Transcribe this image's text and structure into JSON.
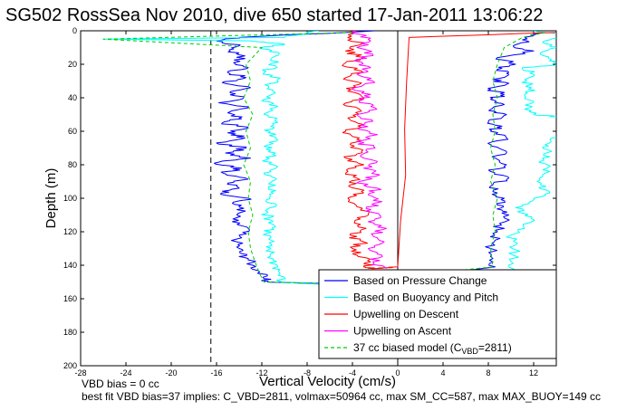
{
  "chart_data": {
    "type": "line",
    "title": "SG502 RossSea Nov 2010, dive 650 started 17-Jan-2011 13:06:22",
    "xlabel": "Vertical Velocity (cm/s)",
    "ylabel": "Depth (m)",
    "xlim": [
      -28,
      14
    ],
    "ylim": [
      0,
      200
    ],
    "y_reversed": true,
    "xticks": [
      -28,
      -24,
      -20,
      -16,
      -12,
      -8,
      -4,
      0,
      4,
      8,
      12
    ],
    "yticks": [
      0,
      20,
      40,
      60,
      80,
      100,
      120,
      140,
      160,
      180,
      200
    ],
    "grid": false,
    "legend_position": "bottom-right",
    "reference_lines": [
      {
        "x": -16.5,
        "style": "dashed",
        "color": "#000000"
      },
      {
        "x": 0,
        "style": "solid",
        "color": "#000000"
      }
    ],
    "series": [
      {
        "name": "Based on Pressure Change",
        "color": "#0000ff",
        "style": "solid",
        "points": [
          [
            -2,
            0
          ],
          [
            -14,
            4
          ],
          [
            -16,
            6
          ],
          [
            -14,
            9
          ],
          [
            -14.8,
            12
          ],
          [
            -13.5,
            15
          ],
          [
            -14.5,
            19
          ],
          [
            -13.2,
            22
          ],
          [
            -15,
            25
          ],
          [
            -13.4,
            28
          ],
          [
            -15.5,
            31
          ],
          [
            -13,
            34
          ],
          [
            -14.8,
            37
          ],
          [
            -13.6,
            40
          ],
          [
            -15.8,
            43
          ],
          [
            -13.2,
            46
          ],
          [
            -15,
            49
          ],
          [
            -14,
            52
          ],
          [
            -15.5,
            55
          ],
          [
            -13.2,
            58
          ],
          [
            -15,
            61
          ],
          [
            -13.5,
            64
          ],
          [
            -16,
            67
          ],
          [
            -13.4,
            70
          ],
          [
            -15.2,
            73
          ],
          [
            -13,
            76
          ],
          [
            -16.2,
            79
          ],
          [
            -13.8,
            82
          ],
          [
            -15.4,
            85
          ],
          [
            -13.4,
            88
          ],
          [
            -15,
            91
          ],
          [
            -14,
            94
          ],
          [
            -15.6,
            97
          ],
          [
            -13.2,
            100
          ],
          [
            -14.6,
            103
          ],
          [
            -13.6,
            106
          ],
          [
            -14.2,
            110
          ],
          [
            -14.6,
            114
          ],
          [
            -13.2,
            118
          ],
          [
            -14,
            122
          ],
          [
            -14.2,
            126
          ],
          [
            -14,
            130
          ],
          [
            -13.8,
            133
          ],
          [
            -13.2,
            136
          ],
          [
            -12.8,
            140
          ],
          [
            -12.2,
            144
          ],
          [
            -11.8,
            148
          ],
          [
            -11.5,
            150
          ],
          [
            -6,
            151
          ],
          [
            -4,
            152
          ],
          [
            8.6,
            141
          ],
          [
            8.4,
            136
          ],
          [
            8.2,
            130
          ],
          [
            8.6,
            125
          ],
          [
            8.8,
            120
          ],
          [
            9,
            115
          ],
          [
            9.8,
            110
          ],
          [
            9.2,
            107
          ],
          [
            8.8,
            104
          ],
          [
            9.4,
            100
          ],
          [
            8.4,
            96
          ],
          [
            8.4,
            92
          ],
          [
            9.8,
            88
          ],
          [
            8.2,
            84
          ],
          [
            9.6,
            80
          ],
          [
            8.6,
            76
          ],
          [
            9.6,
            72
          ],
          [
            8.2,
            68
          ],
          [
            9.6,
            64
          ],
          [
            8.2,
            60
          ],
          [
            9.2,
            57
          ],
          [
            8,
            54
          ],
          [
            9.6,
            50
          ],
          [
            8.2,
            47
          ],
          [
            9.4,
            44
          ],
          [
            8.2,
            41
          ],
          [
            9.4,
            38
          ],
          [
            8.2,
            35
          ],
          [
            9.6,
            32
          ],
          [
            8.4,
            29
          ],
          [
            9.8,
            26
          ],
          [
            8.8,
            23
          ],
          [
            10.4,
            20
          ],
          [
            8.8,
            16
          ],
          [
            12,
            12
          ],
          [
            10.2,
            9
          ],
          [
            11.4,
            6
          ],
          [
            12,
            3
          ],
          [
            13,
            1
          ]
        ]
      },
      {
        "name": "Based on Buoyancy and Pitch",
        "color": "#00ffff",
        "style": "solid",
        "points": [
          [
            -7,
            0
          ],
          [
            -10,
            4
          ],
          [
            -26,
            5
          ],
          [
            -13,
            6
          ],
          [
            -10,
            8
          ],
          [
            -12,
            10
          ],
          [
            -10.5,
            13
          ],
          [
            -11.2,
            17
          ],
          [
            -10.8,
            21
          ],
          [
            -11.8,
            25
          ],
          [
            -10.6,
            29
          ],
          [
            -11.4,
            33
          ],
          [
            -10.8,
            37
          ],
          [
            -11.8,
            41
          ],
          [
            -10.6,
            45
          ],
          [
            -11.6,
            49
          ],
          [
            -10.8,
            53
          ],
          [
            -11.2,
            57
          ],
          [
            -11.4,
            61
          ],
          [
            -10.6,
            65
          ],
          [
            -11.8,
            69
          ],
          [
            -10.8,
            73
          ],
          [
            -11.6,
            77
          ],
          [
            -10.6,
            81
          ],
          [
            -11.8,
            85
          ],
          [
            -10.8,
            89
          ],
          [
            -11.4,
            93
          ],
          [
            -11,
            97
          ],
          [
            -11.6,
            101
          ],
          [
            -10.8,
            105
          ],
          [
            -11.6,
            109
          ],
          [
            -11.2,
            113
          ],
          [
            -10.8,
            117
          ],
          [
            -11.6,
            121
          ],
          [
            -11.2,
            125
          ],
          [
            -11.6,
            129
          ],
          [
            -11.2,
            133
          ],
          [
            -11,
            137
          ],
          [
            -10.6,
            141
          ],
          [
            -10.4,
            145
          ],
          [
            -10.2,
            150
          ],
          [
            -8,
            151
          ],
          [
            -5,
            152
          ],
          [
            10,
            146
          ],
          [
            9.8,
            140
          ],
          [
            10.2,
            134
          ],
          [
            10.4,
            128
          ],
          [
            10,
            122
          ],
          [
            11.2,
            118
          ],
          [
            11.8,
            112
          ],
          [
            10.6,
            108
          ],
          [
            11,
            104
          ],
          [
            12,
            100
          ],
          [
            13.4,
            96
          ],
          [
            12.6,
            92
          ],
          [
            12.8,
            87
          ],
          [
            13.2,
            82
          ],
          [
            12.8,
            76
          ],
          [
            13.6,
            72
          ],
          [
            13,
            68
          ],
          [
            13.6,
            64
          ],
          [
            15.5,
            62
          ],
          [
            15.4,
            56
          ],
          [
            15.2,
            52
          ],
          [
            12,
            50
          ],
          [
            11.6,
            46
          ],
          [
            12,
            42
          ],
          [
            11.2,
            38
          ],
          [
            11.8,
            34
          ],
          [
            11.4,
            30
          ],
          [
            12,
            26
          ],
          [
            11,
            22
          ],
          [
            15,
            20
          ],
          [
            13.4,
            18
          ],
          [
            12.6,
            14
          ],
          [
            14,
            10
          ],
          [
            13,
            6
          ],
          [
            15,
            3
          ],
          [
            12,
            0
          ]
        ]
      },
      {
        "name": "Upwelling on Descent",
        "color": "#ff0000",
        "style": "solid",
        "points": [
          [
            -4,
            0
          ],
          [
            -4.4,
            4
          ],
          [
            -3.2,
            8
          ],
          [
            -4.6,
            12
          ],
          [
            -3,
            16
          ],
          [
            -4.8,
            20
          ],
          [
            -3.2,
            24
          ],
          [
            -4.6,
            28
          ],
          [
            -3.4,
            32
          ],
          [
            -4.4,
            36
          ],
          [
            -3,
            40
          ],
          [
            -4.8,
            44
          ],
          [
            -3.2,
            48
          ],
          [
            -4.4,
            52
          ],
          [
            -3,
            56
          ],
          [
            -4.6,
            60
          ],
          [
            -3.4,
            64
          ],
          [
            -4.2,
            68
          ],
          [
            -3.2,
            72
          ],
          [
            -4.6,
            76
          ],
          [
            -3,
            80
          ],
          [
            -4.4,
            84
          ],
          [
            -3.6,
            88
          ],
          [
            -4.2,
            92
          ],
          [
            -3.2,
            96
          ],
          [
            -4.4,
            100
          ],
          [
            -3.6,
            105
          ],
          [
            -2.6,
            110
          ],
          [
            -3.8,
            114
          ],
          [
            -2.8,
            118
          ],
          [
            -4.2,
            122
          ],
          [
            -3,
            126
          ],
          [
            -4,
            130
          ],
          [
            -3.6,
            134
          ],
          [
            -2.4,
            138
          ],
          [
            -3,
            141
          ],
          [
            -2.2,
            142
          ],
          [
            0,
            141
          ],
          [
            1,
            4
          ],
          [
            14,
            1
          ]
        ]
      },
      {
        "name": "Upwelling on Ascent",
        "color": "#ff00ff",
        "style": "solid",
        "points": [
          [
            -1,
            142
          ],
          [
            -2.2,
            138
          ],
          [
            -1.4,
            134
          ],
          [
            -2.6,
            130
          ],
          [
            -1.2,
            126
          ],
          [
            -2.2,
            122
          ],
          [
            -1,
            118
          ],
          [
            -2.6,
            114
          ],
          [
            -1.6,
            110
          ],
          [
            -2.8,
            106
          ],
          [
            -1.4,
            102
          ],
          [
            -2.6,
            98
          ],
          [
            -1.8,
            94
          ],
          [
            -3.4,
            90
          ],
          [
            -1.6,
            86
          ],
          [
            -3,
            82
          ],
          [
            -1.8,
            78
          ],
          [
            -3.2,
            74
          ],
          [
            -2,
            70
          ],
          [
            -3.6,
            66
          ],
          [
            -1.8,
            62
          ],
          [
            -3.4,
            58
          ],
          [
            -2.2,
            54
          ],
          [
            -3.6,
            50
          ],
          [
            -2,
            46
          ],
          [
            -3.4,
            42
          ],
          [
            -2.4,
            38
          ],
          [
            -3.8,
            34
          ],
          [
            -2.2,
            30
          ],
          [
            -3.6,
            26
          ],
          [
            -2.4,
            22
          ],
          [
            -3.8,
            18
          ],
          [
            -2.2,
            14
          ],
          [
            -3.6,
            10
          ],
          [
            -2.4,
            6
          ],
          [
            -3.4,
            2
          ],
          [
            -4,
            0
          ]
        ]
      },
      {
        "name": "37 cc biased model (C_VBD=2811)",
        "color": "#00cc00",
        "style": "dashed",
        "points": [
          [
            -4,
            1
          ],
          [
            -26,
            5
          ],
          [
            -12,
            10
          ],
          [
            -13.4,
            20
          ],
          [
            -13,
            30
          ],
          [
            -13.6,
            40
          ],
          [
            -12.8,
            50
          ],
          [
            -13.4,
            60
          ],
          [
            -13,
            70
          ],
          [
            -13.6,
            80
          ],
          [
            -13,
            90
          ],
          [
            -13.2,
            100
          ],
          [
            -12.8,
            110
          ],
          [
            -13.2,
            120
          ],
          [
            -13,
            130
          ],
          [
            -12.6,
            138
          ],
          [
            -12.2,
            145
          ],
          [
            -11.8,
            150
          ],
          [
            -6,
            151
          ],
          [
            8.4,
            141
          ],
          [
            8.2,
            130
          ],
          [
            8.6,
            120
          ],
          [
            8.4,
            110
          ],
          [
            8.8,
            100
          ],
          [
            8.2,
            90
          ],
          [
            8.6,
            80
          ],
          [
            8.2,
            70
          ],
          [
            8.6,
            60
          ],
          [
            8.4,
            50
          ],
          [
            8.8,
            40
          ],
          [
            8.4,
            30
          ],
          [
            8.8,
            20
          ],
          [
            9.4,
            10
          ],
          [
            11,
            4
          ],
          [
            13,
            1
          ]
        ]
      }
    ],
    "legend_entries": [
      {
        "label": "Based on Pressure Change",
        "color": "#0000ff",
        "style": "solid"
      },
      {
        "label": "Based on Buoyancy and Pitch",
        "color": "#00ffff",
        "style": "solid"
      },
      {
        "label": "Upwelling on Descent",
        "color": "#ff0000",
        "style": "solid"
      },
      {
        "label": "Upwelling on Ascent",
        "color": "#ff00ff",
        "style": "solid"
      },
      {
        "label": "37 cc biased model (C",
        "subscript": "VBD",
        "suffix": "=2811)",
        "color": "#00cc00",
        "style": "dashed"
      }
    ],
    "annotations": [
      "VBD bias = 0 cc",
      "best fit VBD bias=37 implies: C_VBD=2811, volmax=50964 cc, max SM_CC=587, max MAX_BUOY=149 cc"
    ]
  }
}
